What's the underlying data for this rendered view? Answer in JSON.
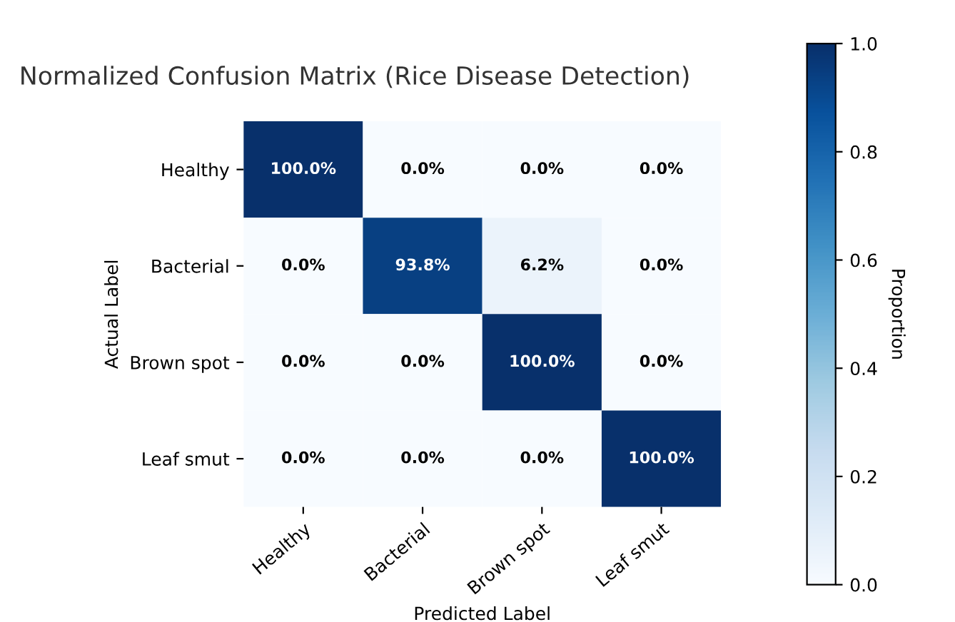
{
  "chart_data": {
    "type": "heatmap",
    "title": "Normalized Confusion Matrix (Rice Disease Detection)",
    "xlabel": "Predicted Label",
    "ylabel": "Actual Label",
    "clabel": "Proportion",
    "categories": [
      "Healthy",
      "Bacterial",
      "Brown spot",
      "Leaf smut"
    ],
    "y_categories": [
      "Healthy",
      "Bacterial",
      "Brown spot",
      "Leaf smut"
    ],
    "cells": [
      [
        1.0,
        0.0,
        0.0,
        0.0
      ],
      [
        0.0,
        0.938,
        0.062,
        0.0
      ],
      [
        0.0,
        0.0,
        1.0,
        0.0
      ],
      [
        0.0,
        0.0,
        0.0,
        1.0
      ]
    ],
    "cell_labels": [
      [
        "100.0%",
        "0.0%",
        "0.0%",
        "0.0%"
      ],
      [
        "0.0%",
        "93.8%",
        "6.2%",
        "0.0%"
      ],
      [
        "0.0%",
        "0.0%",
        "100.0%",
        "0.0%"
      ],
      [
        "0.0%",
        "0.0%",
        "0.0%",
        "100.0%"
      ]
    ],
    "clim": [
      0.0,
      1.0
    ],
    "cticks": [
      {
        "value": 0,
        "label": "0.0"
      },
      0.2,
      0.4,
      0.6,
      0.8,
      {
        "value": 1,
        "label": "1.0"
      }
    ]
  }
}
